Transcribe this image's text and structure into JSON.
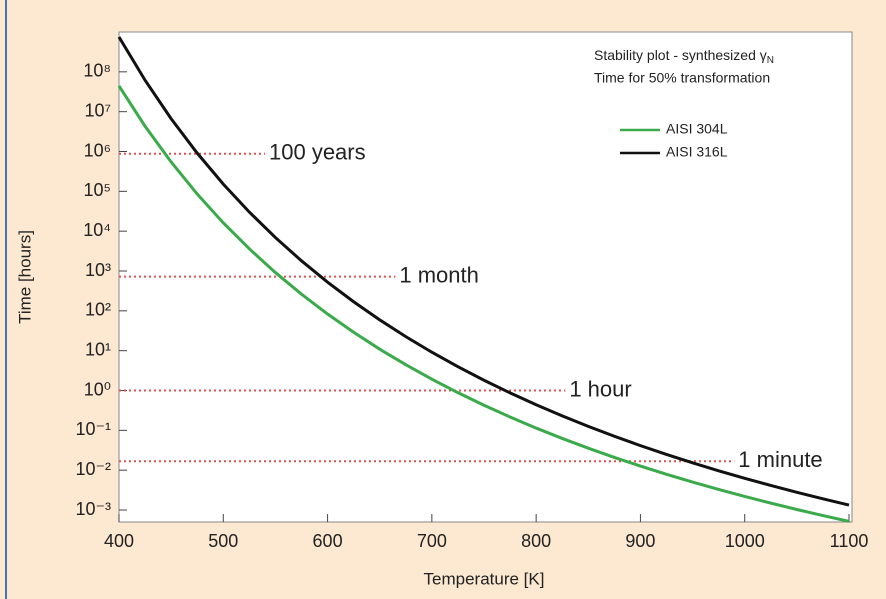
{
  "chart_data": {
    "type": "line",
    "title": "Stability plot - synthesized γ",
    "title_subscript": "N",
    "subtitle": "Time for 50% transformation",
    "x_label": "Temperature [K]",
    "y_label": "Time [hours]",
    "log_y": true,
    "legend": "top-right",
    "xlim": [
      400,
      1100
    ],
    "xticks": [
      400,
      500,
      600,
      700,
      800,
      900,
      1000,
      1100
    ],
    "ylim": [
      0.0005,
      1000000000
    ],
    "yticks": [
      {
        "value": 0.001,
        "label": "10⁻³"
      },
      {
        "value": 0.01,
        "label": "10⁻²"
      },
      {
        "value": 0.1,
        "label": "10⁻¹"
      },
      {
        "value": 1,
        "label": "10⁰"
      },
      {
        "value": 10,
        "label": "10¹"
      },
      {
        "value": 100,
        "label": "10²"
      },
      {
        "value": 1000,
        "label": "10³"
      },
      {
        "value": 10000,
        "label": "10⁴"
      },
      {
        "value": 100000,
        "label": "10⁵"
      },
      {
        "value": 1000000,
        "label": "10⁶"
      },
      {
        "value": 10000000,
        "label": "10⁷"
      },
      {
        "value": 100000000,
        "label": "10⁸"
      }
    ],
    "x": [
      400,
      425,
      450,
      475,
      500,
      525,
      550,
      575,
      600,
      625,
      650,
      675,
      700,
      725,
      750,
      775,
      800,
      825,
      850,
      875,
      900,
      925,
      950,
      975,
      1000,
      1025,
      1050,
      1075,
      1100
    ],
    "series": [
      {
        "name": "AISI 304L",
        "color": "#3aaa4a",
        "values": [
          44200000,
          4310000,
          546000,
          85700,
          16200,
          3600,
          914,
          262,
          83.2,
          29.0,
          10.9,
          4.45,
          1.92,
          0.883,
          0.427,
          0.216,
          0.114,
          0.0626,
          0.0356,
          0.0209,
          0.0127,
          0.00789,
          0.00504,
          0.00328,
          0.00219,
          0.00149,
          0.00103,
          0.000726,
          0.000519
        ]
      },
      {
        "name": "AISI 316L",
        "color": "#111111",
        "values": [
          750000000,
          61500000,
          6650000,
          910000,
          152000,
          30100,
          6900,
          1800,
          525,
          169,
          59.3,
          22.5,
          9.14,
          3.96,
          1.81,
          0.871,
          0.439,
          0.231,
          0.126,
          0.071,
          0.0414,
          0.0248,
          0.0153,
          0.00966,
          0.00625,
          0.00413,
          0.00278,
          0.00191,
          0.00133
        ]
      }
    ],
    "reference_lines": [
      {
        "label": "100 years",
        "value": 876000,
        "x": [
          400,
          540
        ],
        "color": "#e05050"
      },
      {
        "label": "1 month",
        "value": 720,
        "x": [
          400,
          665
        ],
        "color": "#e05050"
      },
      {
        "label": "1 hour",
        "value": 1,
        "x": [
          400,
          828
        ],
        "color": "#e05050"
      },
      {
        "label": "1 minute",
        "value": 0.0167,
        "x": [
          400,
          990
        ],
        "color": "#e05050"
      }
    ]
  }
}
